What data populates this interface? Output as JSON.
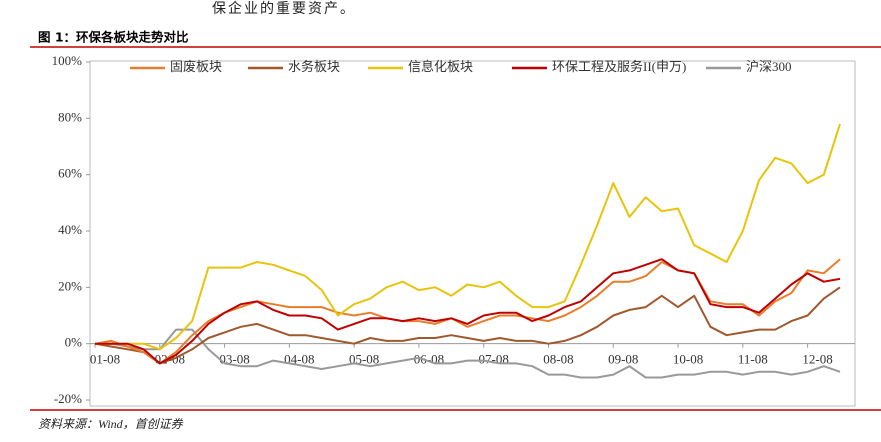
{
  "document": {
    "paragraph": "保企业的重要资产。"
  },
  "chart_data": {
    "type": "line",
    "title": "图 1：环保各板块走势对比",
    "source": "资料来源：Wind，首创证券",
    "categories": [
      "01-08",
      null,
      null,
      null,
      "02-08",
      null,
      null,
      null,
      "03-08",
      null,
      null,
      null,
      "04-08",
      null,
      null,
      null,
      "05-08",
      null,
      null,
      null,
      "06-08",
      null,
      null,
      null,
      "07-08",
      null,
      null,
      null,
      "08-08",
      null,
      null,
      null,
      "09-08",
      null,
      null,
      null,
      "10-08",
      null,
      null,
      null,
      "11-08",
      null,
      null,
      null,
      "12-08",
      null,
      null
    ],
    "series": [
      {
        "name": "固废板块",
        "color": "#e87d2c",
        "values": [
          0,
          1,
          -1,
          -3,
          -7,
          -3,
          3,
          8,
          11,
          13,
          15,
          14,
          13,
          13,
          13,
          11,
          10,
          11,
          9,
          8,
          8,
          7,
          9,
          6,
          8,
          10,
          10,
          9,
          8,
          10,
          13,
          17,
          22,
          22,
          24,
          29,
          26,
          25,
          15,
          14,
          14,
          10,
          15,
          18,
          26,
          25,
          30
        ]
      },
      {
        "name": "水务板块",
        "color": "#a0582d",
        "values": [
          0,
          -1,
          -2,
          -3,
          -7,
          -5,
          -2,
          2,
          4,
          6,
          7,
          5,
          3,
          3,
          2,
          1,
          0,
          2,
          1,
          1,
          2,
          2,
          3,
          2,
          1,
          2,
          1,
          1,
          0,
          1,
          3,
          6,
          10,
          12,
          13,
          17,
          13,
          17,
          6,
          3,
          4,
          5,
          5,
          8,
          10,
          16,
          20
        ]
      },
      {
        "name": "信息化板块",
        "color": "#e8c40c",
        "values": [
          0,
          0,
          0,
          0,
          -2,
          2,
          8,
          27,
          27,
          27,
          29,
          28,
          26,
          24,
          19,
          10,
          14,
          16,
          20,
          22,
          19,
          20,
          17,
          21,
          20,
          22,
          17,
          13,
          13,
          15,
          28,
          42,
          57,
          45,
          52,
          47,
          48,
          35,
          32,
          29,
          40,
          58,
          66,
          64,
          57,
          60,
          78
        ]
      },
      {
        "name": "环保工程及服务II(申万)",
        "color": "#c00000",
        "values": [
          0,
          0,
          0,
          -2,
          -7,
          -4,
          1,
          7,
          11,
          14,
          15,
          12,
          10,
          10,
          9,
          5,
          7,
          9,
          9,
          8,
          9,
          8,
          9,
          7,
          10,
          11,
          11,
          8,
          10,
          13,
          15,
          20,
          25,
          26,
          28,
          30,
          26,
          25,
          14,
          13,
          13,
          11,
          16,
          21,
          25,
          22,
          23
        ]
      },
      {
        "name": "沪深300",
        "color": "#999999",
        "values": [
          0,
          0,
          -1,
          -2,
          -2,
          5,
          5,
          -2,
          -7,
          -8,
          -8,
          -6,
          -7,
          -8,
          -9,
          -8,
          -7,
          -8,
          -7,
          -6,
          -5,
          -7,
          -7,
          -6,
          -6,
          -7,
          -7,
          -8,
          -11,
          -11,
          -12,
          -12,
          -11,
          -8,
          -12,
          -12,
          -11,
          -11,
          -10,
          -10,
          -11,
          -10,
          -10,
          -11,
          -10,
          -8,
          -10
        ]
      }
    ],
    "ylim": [
      -20,
      100
    ],
    "yticks": [
      {
        "value": -20,
        "label": "-20%"
      },
      {
        "value": 0,
        "label": "0%"
      },
      {
        "value": 20,
        "label": "20%"
      },
      {
        "value": 40,
        "label": "40%"
      },
      {
        "value": 60,
        "label": "60%"
      },
      {
        "value": 80,
        "label": "80%"
      },
      {
        "value": 100,
        "label": "100%"
      }
    ],
    "legend": "top"
  }
}
